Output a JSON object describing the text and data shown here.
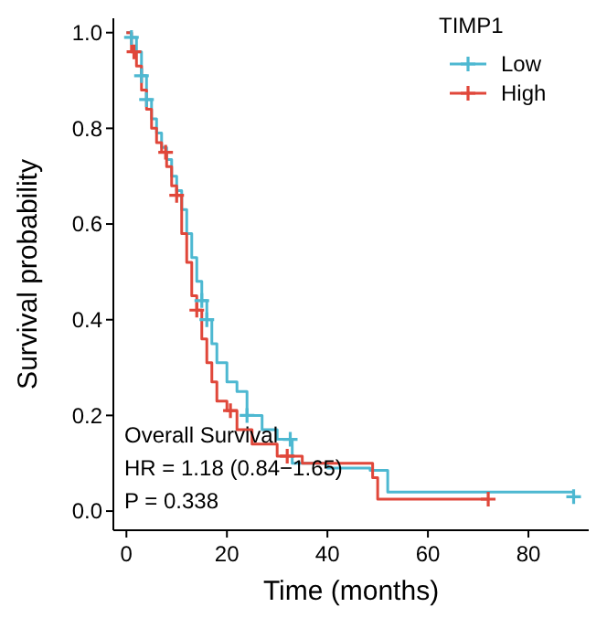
{
  "chart_data": {
    "type": "step",
    "xlabel": "Time (months)",
    "ylabel": "Survival probability",
    "legend_title": "TIMP1",
    "legend": "top right",
    "grid": false,
    "marker": "none",
    "xlim": [
      -2.6,
      92
    ],
    "ylim": [
      -0.04,
      1.03
    ],
    "xticks": [
      0,
      20,
      40,
      60,
      80
    ],
    "yticks": [
      {
        "value": 0,
        "label": "0.0"
      },
      {
        "value": 0.2,
        "label": "0.2"
      },
      {
        "value": 0.4,
        "label": "0.4"
      },
      {
        "value": 0.6,
        "label": "0.6"
      },
      {
        "value": 0.8,
        "label": "0.8"
      },
      {
        "value": 1,
        "label": "1.0"
      }
    ],
    "series": [
      {
        "name": "Low",
        "color": "#4db8d1",
        "x": [
          0,
          1,
          2,
          3,
          4,
          5,
          6,
          7,
          8,
          9,
          10,
          11,
          12,
          13,
          14,
          15,
          16,
          17,
          18,
          20,
          22,
          24,
          27,
          30,
          33,
          40,
          48.5,
          52,
          89
        ],
        "values": [
          1,
          0.99,
          0.96,
          0.91,
          0.86,
          0.82,
          0.79,
          0.76,
          0.735,
          0.7,
          0.67,
          0.63,
          0.58,
          0.53,
          0.48,
          0.44,
          0.4,
          0.35,
          0.31,
          0.27,
          0.25,
          0.2,
          0.17,
          0.15,
          0.1,
          0.09,
          0.085,
          0.04,
          0.03
        ]
      },
      {
        "name": "High",
        "color": "#e0473a",
        "x": [
          0,
          1,
          2,
          3,
          4,
          5,
          6,
          7,
          8,
          9,
          10,
          11,
          12,
          13,
          14,
          15,
          16,
          17,
          18,
          20,
          22,
          25,
          30,
          35,
          49,
          50,
          72
        ],
        "values": [
          1,
          0.96,
          0.93,
          0.88,
          0.84,
          0.8,
          0.77,
          0.75,
          0.72,
          0.68,
          0.66,
          0.58,
          0.52,
          0.45,
          0.42,
          0.36,
          0.31,
          0.27,
          0.23,
          0.21,
          0.17,
          0.14,
          0.115,
          0.1,
          0.07,
          0.025,
          0.025
        ]
      },
      {
        "type": "scatter",
        "marker": "cross",
        "color": "#4db8d1",
        "x": [
          1,
          3,
          4,
          15,
          16,
          24,
          32.6,
          89
        ],
        "values": [
          0.99,
          0.91,
          0.86,
          0.44,
          0.4,
          0.2,
          0.15,
          0.03
        ]
      },
      {
        "type": "scatter",
        "marker": "cross",
        "color": "#e0473a",
        "x": [
          1.5,
          7.8,
          10,
          14,
          20.7,
          32,
          72
        ],
        "values": [
          0.96,
          0.75,
          0.66,
          0.42,
          0.21,
          0.115,
          0.025
        ]
      }
    ],
    "annotations": [
      "Overall Survival",
      "HR = 1.18 (0.84−1.65)",
      "P = 0.338"
    ]
  }
}
